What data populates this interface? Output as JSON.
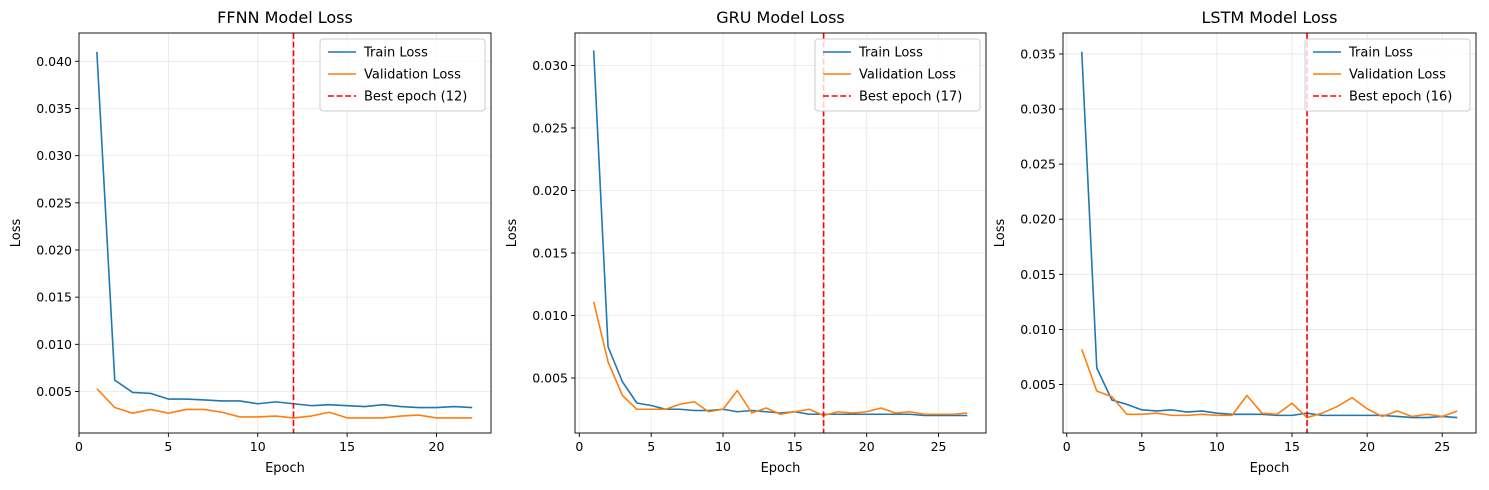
{
  "chart_data": [
    {
      "type": "line",
      "title": "FFNN Model Loss",
      "xlabel": "Epoch",
      "ylabel": "Loss",
      "xlim": [
        0,
        23.05
      ],
      "ylim": [
        0.0006,
        0.043
      ],
      "xticks": [
        0,
        5,
        10,
        15,
        20
      ],
      "xtick_labels": [
        "0",
        "5",
        "10",
        "15",
        "20"
      ],
      "yticks": [
        0.005,
        0.01,
        0.015,
        0.02,
        0.025,
        0.03,
        0.035,
        0.04
      ],
      "ytick_labels": [
        "0.005",
        "0.010",
        "0.015",
        "0.020",
        "0.025",
        "0.030",
        "0.035",
        "0.040"
      ],
      "grid": true,
      "legend": "top-right",
      "x": [
        1,
        2,
        3,
        4,
        5,
        6,
        7,
        8,
        9,
        10,
        11,
        12,
        13,
        14,
        15,
        16,
        17,
        18,
        19,
        20,
        21,
        22
      ],
      "series": [
        {
          "name": "Train Loss",
          "color": "#1f77b4",
          "values": [
            0.041,
            0.0062,
            0.0049,
            0.0048,
            0.0042,
            0.0042,
            0.0041,
            0.004,
            0.004,
            0.0037,
            0.0039,
            0.0037,
            0.0035,
            0.0036,
            0.0035,
            0.0034,
            0.0036,
            0.0034,
            0.0033,
            0.0033,
            0.0034,
            0.0033
          ]
        },
        {
          "name": "Validation Loss",
          "color": "#ff7f0e",
          "values": [
            0.0053,
            0.0033,
            0.0027,
            0.0031,
            0.0027,
            0.0031,
            0.0031,
            0.0028,
            0.0023,
            0.0023,
            0.0024,
            0.0022,
            0.0024,
            0.0028,
            0.0022,
            0.0022,
            0.0022,
            0.0024,
            0.0025,
            0.0022,
            0.0022,
            0.0022
          ]
        }
      ],
      "best_epoch": {
        "x": 12,
        "label": "Best epoch (12)",
        "color": "#ff0000"
      }
    },
    {
      "type": "line",
      "title": "GRU Model Loss",
      "xlabel": "Epoch",
      "ylabel": "Loss",
      "xlim": [
        -0.3,
        28.3
      ],
      "ylim": [
        0.0006,
        0.0326
      ],
      "xticks": [
        0,
        5,
        10,
        15,
        20,
        25
      ],
      "xtick_labels": [
        "0",
        "5",
        "10",
        "15",
        "20",
        "25"
      ],
      "yticks": [
        0.005,
        0.01,
        0.015,
        0.02,
        0.025,
        0.03
      ],
      "ytick_labels": [
        "0.005",
        "0.010",
        "0.015",
        "0.020",
        "0.025",
        "0.030"
      ],
      "grid": true,
      "legend": "top-right",
      "x": [
        1,
        2,
        3,
        4,
        5,
        6,
        7,
        8,
        9,
        10,
        11,
        12,
        13,
        14,
        15,
        16,
        17,
        18,
        19,
        20,
        21,
        22,
        23,
        24,
        25,
        26,
        27
      ],
      "series": [
        {
          "name": "Train Loss",
          "color": "#1f77b4",
          "values": [
            0.0312,
            0.0075,
            0.0047,
            0.003,
            0.0028,
            0.0025,
            0.0025,
            0.0024,
            0.0024,
            0.0025,
            0.0023,
            0.0024,
            0.0023,
            0.0022,
            0.0023,
            0.0021,
            0.0021,
            0.0021,
            0.0021,
            0.0021,
            0.0021,
            0.0021,
            0.0021,
            0.002,
            0.002,
            0.002,
            0.002
          ]
        },
        {
          "name": "Validation Loss",
          "color": "#ff7f0e",
          "values": [
            0.0111,
            0.0063,
            0.0036,
            0.0025,
            0.0025,
            0.0025,
            0.0029,
            0.0031,
            0.0023,
            0.0025,
            0.004,
            0.0022,
            0.0026,
            0.0021,
            0.0023,
            0.0025,
            0.002,
            0.0023,
            0.0022,
            0.0023,
            0.0026,
            0.0022,
            0.0023,
            0.0021,
            0.0021,
            0.0021,
            0.0022
          ]
        }
      ],
      "best_epoch": {
        "x": 17,
        "label": "Best epoch (17)",
        "color": "#ff0000"
      }
    },
    {
      "type": "line",
      "title": "LSTM Model Loss",
      "xlabel": "Epoch",
      "ylabel": "Loss",
      "xlim": [
        -0.25,
        27.25
      ],
      "ylim": [
        0.0006,
        0.0369
      ],
      "xticks": [
        0,
        5,
        10,
        15,
        20,
        25
      ],
      "xtick_labels": [
        "0",
        "5",
        "10",
        "15",
        "20",
        "25"
      ],
      "yticks": [
        0.005,
        0.01,
        0.015,
        0.02,
        0.025,
        0.03,
        0.035
      ],
      "ytick_labels": [
        "0.005",
        "0.010",
        "0.015",
        "0.020",
        "0.025",
        "0.030",
        "0.035"
      ],
      "grid": true,
      "legend": "top-right",
      "x": [
        1,
        2,
        3,
        4,
        5,
        6,
        7,
        8,
        9,
        10,
        11,
        12,
        13,
        14,
        15,
        16,
        17,
        18,
        19,
        20,
        21,
        22,
        23,
        24,
        25,
        26
      ],
      "series": [
        {
          "name": "Train Loss",
          "color": "#1f77b4",
          "values": [
            0.0352,
            0.0065,
            0.0036,
            0.0032,
            0.0027,
            0.0026,
            0.0027,
            0.0025,
            0.0026,
            0.0024,
            0.0023,
            0.0023,
            0.0023,
            0.0022,
            0.0022,
            0.0024,
            0.0022,
            0.0022,
            0.0022,
            0.0022,
            0.0022,
            0.0021,
            0.002,
            0.002,
            0.0021,
            0.002
          ]
        },
        {
          "name": "Validation Loss",
          "color": "#ff7f0e",
          "values": [
            0.0082,
            0.0044,
            0.0039,
            0.0023,
            0.0023,
            0.0024,
            0.0022,
            0.0022,
            0.0023,
            0.0022,
            0.0022,
            0.004,
            0.0024,
            0.0023,
            0.0033,
            0.002,
            0.0024,
            0.003,
            0.0038,
            0.0028,
            0.0021,
            0.0026,
            0.0021,
            0.0023,
            0.0021,
            0.0026
          ]
        }
      ],
      "best_epoch": {
        "x": 16,
        "label": "Best epoch (16)",
        "color": "#ff0000"
      }
    }
  ]
}
